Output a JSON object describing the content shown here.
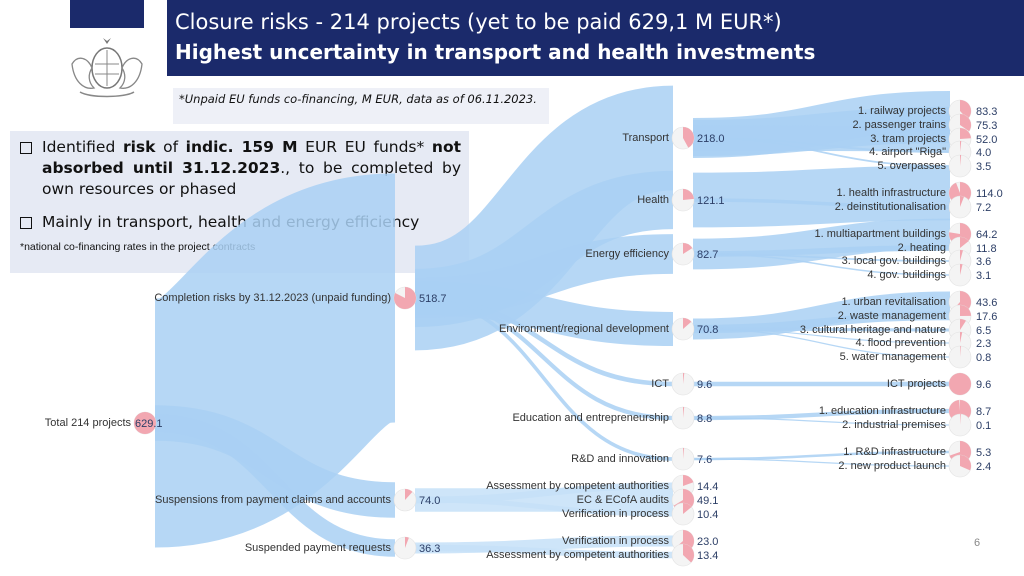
{
  "header": {
    "title": "Closure risks - 214 projects (yet to be paid 629,1 M EUR*)",
    "subtitle": "Highest uncertainty in transport and health investments"
  },
  "note": "*Unpaid EU funds co-financing, M EUR, data as of 06.11.2023.",
  "info": {
    "b1_pre": "Identified ",
    "b1_risk": "risk",
    "b1_of": " of ",
    "b1_amount": "indic. 159 M",
    "b1_mid": " EUR EU funds* ",
    "b1_not": "not absorbed until 31.12.2023",
    "b1_end": "., to be completed by own resources or phased",
    "b2": "Mainly in transport, health and energy efficiency",
    "footnote": "*national co-financing rates in the project contracts"
  },
  "page_number": "6",
  "chart_data": {
    "type": "sankey",
    "root": {
      "label": "Total 214 projects",
      "value": "629.1"
    },
    "level1": [
      {
        "label": "Completion risks by 31.12.2023 (unpaid funding)",
        "value": "518.7"
      },
      {
        "label": "Suspensions from payment claims and accounts",
        "value": "74.0"
      },
      {
        "label": "Suspended payment requests",
        "value": "36.3"
      }
    ],
    "level2": [
      {
        "label": "Transport",
        "value": "218.0"
      },
      {
        "label": "Health",
        "value": "121.1"
      },
      {
        "label": "Energy efficiency",
        "value": "82.7"
      },
      {
        "label": "Environment/regional development",
        "value": "70.8"
      },
      {
        "label": "ICT",
        "value": "9.6"
      },
      {
        "label": "Education and entrepreneurship",
        "value": "8.8"
      },
      {
        "label": "R&D and innovation",
        "value": "7.6"
      }
    ],
    "leaves": [
      {
        "parent": 0,
        "label": "1. railway projects",
        "value": "83.3"
      },
      {
        "parent": 0,
        "label": "2. passenger trains",
        "value": "75.3"
      },
      {
        "parent": 0,
        "label": "3. tram projects",
        "value": "52.0"
      },
      {
        "parent": 0,
        "label": "4. airport \"Riga\"",
        "value": "4.0"
      },
      {
        "parent": 0,
        "label": "5. overpasses",
        "value": "3.5"
      },
      {
        "parent": 1,
        "label": "1. health infrastructure",
        "value": "114.0"
      },
      {
        "parent": 1,
        "label": "2. deinstitutionalisation",
        "value": "7.2"
      },
      {
        "parent": 2,
        "label": "1. multiapartment buildings",
        "value": "64.2"
      },
      {
        "parent": 2,
        "label": "2. heating",
        "value": "11.8"
      },
      {
        "parent": 2,
        "label": "3. local gov. buildings",
        "value": "3.6"
      },
      {
        "parent": 2,
        "label": "4. gov. buildings",
        "value": "3.1"
      },
      {
        "parent": 3,
        "label": "1. urban revitalisation",
        "value": "43.6"
      },
      {
        "parent": 3,
        "label": "2. waste management",
        "value": "17.6"
      },
      {
        "parent": 3,
        "label": "3. cultural heritage and nature",
        "value": "6.5"
      },
      {
        "parent": 3,
        "label": "4. flood prevention",
        "value": "2.3"
      },
      {
        "parent": 3,
        "label": "5. water management",
        "value": "0.8"
      },
      {
        "parent": 4,
        "label": "ICT projects",
        "value": "9.6"
      },
      {
        "parent": 5,
        "label": "1. education infrastructure",
        "value": "8.7"
      },
      {
        "parent": 5,
        "label": "2. industrial premises",
        "value": "0.1"
      },
      {
        "parent": 6,
        "label": "1. R&D infrastructure",
        "value": "5.3"
      },
      {
        "parent": 6,
        "label": "2. new product launch",
        "value": "2.4"
      }
    ],
    "suspension_leaves": [
      {
        "parent": 1,
        "label": "Assessment by competent authorities",
        "value": "14.4"
      },
      {
        "parent": 1,
        "label": "EC & ECofA audits",
        "value": "49.1"
      },
      {
        "parent": 1,
        "label": "Verification in process",
        "value": "10.4"
      },
      {
        "parent": 2,
        "label": "Verification in process",
        "value": "23.0"
      },
      {
        "parent": 2,
        "label": "Assessment by competent authorities",
        "value": "13.4"
      }
    ]
  }
}
